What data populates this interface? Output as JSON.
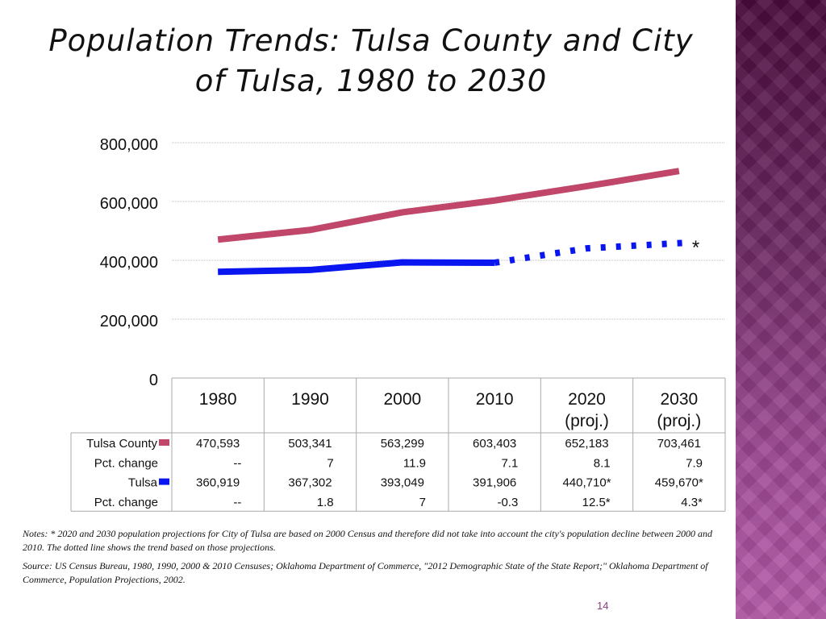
{
  "title_line1": "Population Trends:  Tulsa County and City",
  "title_line2": "of Tulsa, 1980 to 2030",
  "chart_data": {
    "type": "line",
    "categories": [
      "1980",
      "1990",
      "2000",
      "2010",
      "2020",
      "2030"
    ],
    "category_sub": [
      "",
      "",
      "",
      "",
      "(proj.)",
      "(proj.)"
    ],
    "yticks": [
      "0",
      "200,000",
      "400,000",
      "600,000",
      "800,000"
    ],
    "ylim": [
      0,
      800000
    ],
    "grid": true,
    "series": [
      {
        "name": "Tulsa County",
        "color": "#c0476a",
        "values": [
          470593,
          503341,
          563299,
          603403,
          652183,
          703461
        ],
        "style": "solid"
      },
      {
        "name": "Tulsa",
        "color": "#0a16f0",
        "values": [
          360919,
          367302,
          393049,
          391906,
          440710,
          459670
        ],
        "style": "solid-then-dotted",
        "projection_start": "2010"
      }
    ],
    "annotation": "*",
    "table": {
      "rows": [
        {
          "label": "Tulsa County",
          "legend_color": "#c0476a",
          "cells": [
            "470,593",
            "503,341",
            "563,299",
            "603,403",
            "652,183",
            "703,461"
          ],
          "align": "center"
        },
        {
          "label": "Pct. change",
          "cells": [
            "--",
            "7",
            "11.9",
            "7.1",
            "8.1",
            "7.9"
          ],
          "align": "right"
        },
        {
          "label": "Tulsa",
          "legend_color": "#0a16f0",
          "cells": [
            "360,919",
            "367,302",
            "393,049",
            "391,906",
            "440,710*",
            "459,670*"
          ],
          "align": "center"
        },
        {
          "label": "Pct. change",
          "cells": [
            "--",
            "1.8",
            "7",
            "-0.3",
            "12.5*",
            "4.3*"
          ],
          "align": "right"
        }
      ]
    }
  },
  "notes": "Notes:  * 2020 and 2030 population projections for City of Tulsa are based on 2000 Census and therefore did not take into account the city's population decline between 2000 and 2010.  The dotted line shows the trend based on those projections.",
  "source": "Source:  US Census Bureau, 1980, 1990, 2000 & 2010 Censuses; Oklahoma Department of Commerce, \"2012 Demographic State of the State Report;\" Oklahoma Department of Commerce, Population Projections, 2002.",
  "page_number": "14"
}
